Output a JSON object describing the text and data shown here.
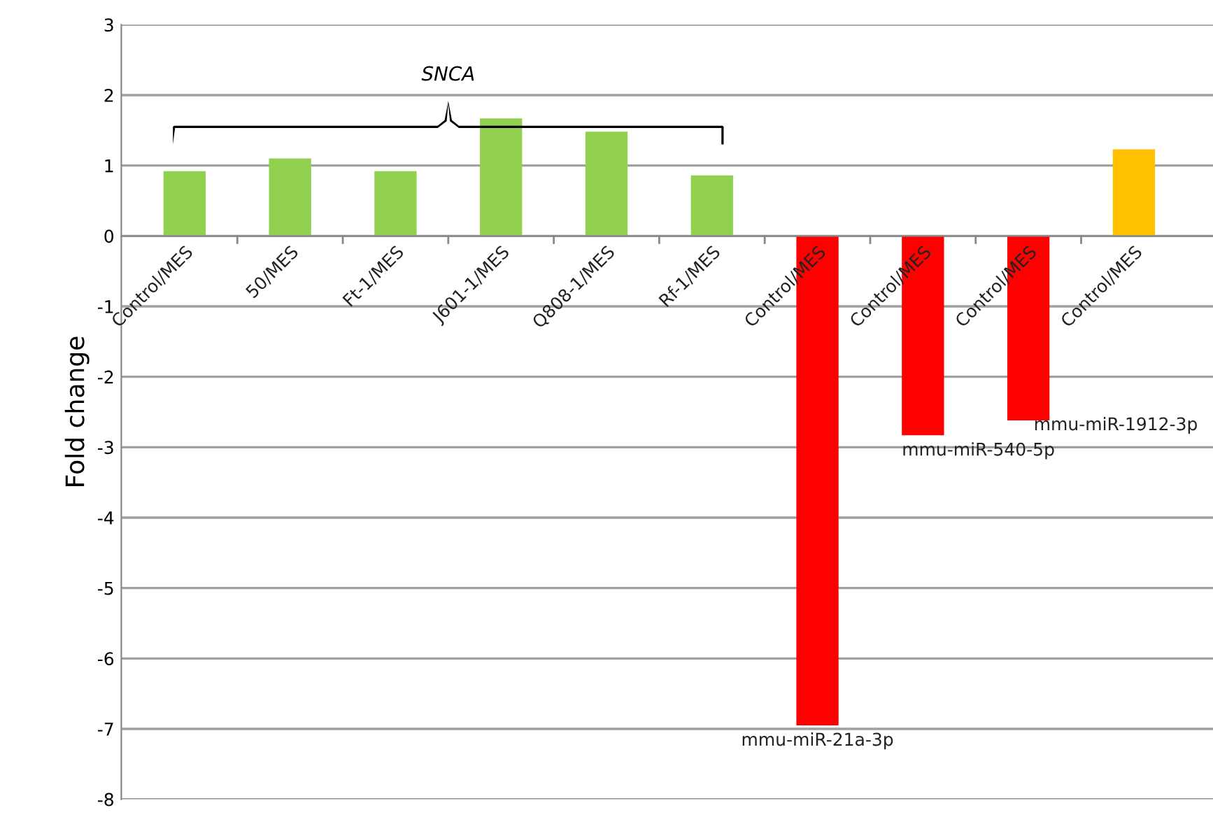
{
  "chart_data": {
    "type": "bar",
    "ylabel": "Fold change",
    "categories": [
      "Control/MES",
      "50/MES",
      "Ft-1/MES",
      "J601-1/MES",
      "Q808-1/MES",
      "Rf-1/MES",
      "Control/MES",
      "Control/MES",
      "Control/MES",
      "Control/MES"
    ],
    "values": [
      0.92,
      1.1,
      0.92,
      1.67,
      1.48,
      0.86,
      -6.95,
      -2.83,
      -2.62,
      1.23
    ],
    "colors": [
      "#92d050",
      "#92d050",
      "#92d050",
      "#92d050",
      "#92d050",
      "#92d050",
      "#ff0000",
      "#ff0000",
      "#ff0000",
      "#ffc000"
    ],
    "ylim": [
      -8,
      3
    ],
    "yticks": [
      -8,
      -7,
      -6,
      -5,
      -4,
      -3,
      -2,
      -1,
      0,
      1,
      2,
      3
    ],
    "grid": "y",
    "annotations": [
      "SNCA",
      "mmu-miR-21a-3p",
      "mmu-miR-540-5p",
      "mmu-miR-1912-3p"
    ]
  }
}
